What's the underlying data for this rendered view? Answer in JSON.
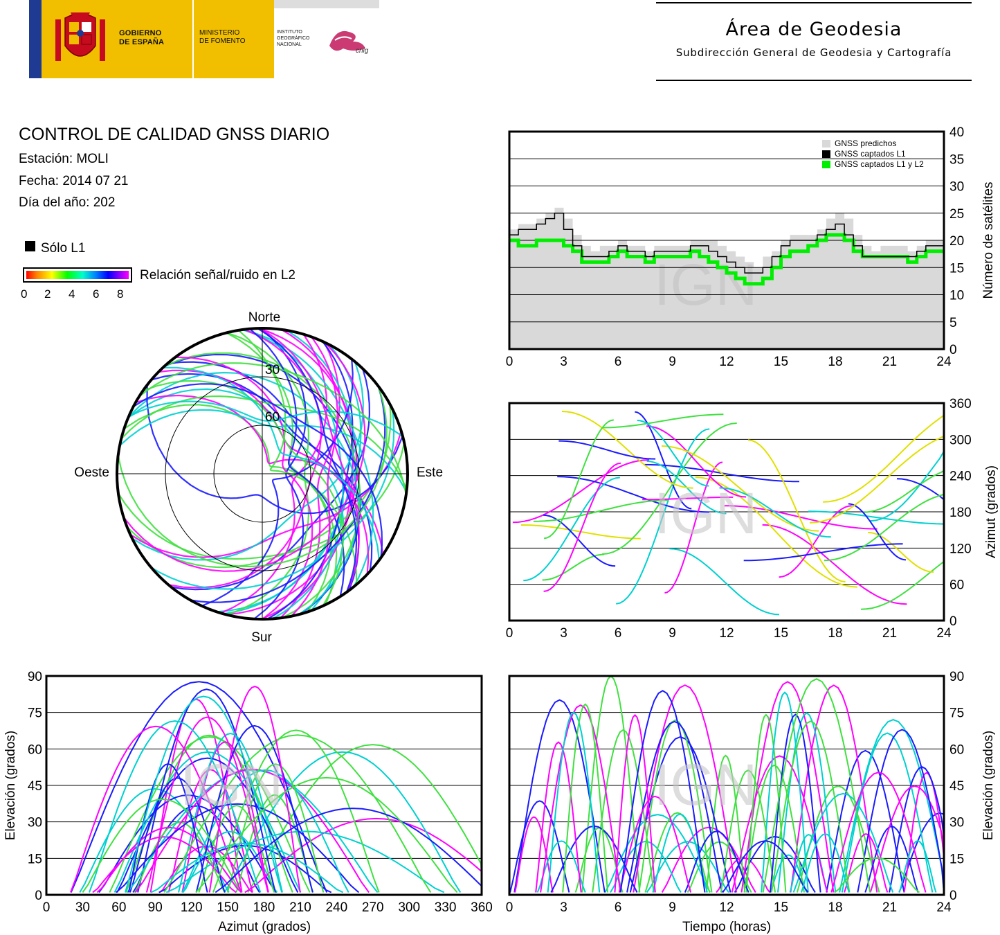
{
  "header": {
    "gov_text": [
      "GOBIERNO",
      "DE ESPAÑA"
    ],
    "ministry_text": [
      "MINISTERIO",
      "DE FOMENTO"
    ],
    "institute_text": [
      "INSTITUTO",
      "GEOGRÁFICO",
      "NACIONAL"
    ],
    "cnig_text": "cnig",
    "area_title": "Área de Geodesia",
    "area_subtitle": "Subdirección General de Geodesia y Cartografía"
  },
  "info": {
    "title": "CONTROL DE CALIDAD GNSS DIARIO",
    "station": "Estación: MOLI",
    "date": "Fecha: 2014 07 21",
    "doy": "Día del año: 202",
    "legend_l1": "Sólo L1",
    "colorbar_label": "Relación señal/ruido en L2",
    "colorbar_ticks": [
      "0",
      "2",
      "4",
      "6",
      "8"
    ],
    "watermark": "IGN"
  },
  "colors": {
    "predicted": "#d9d9d9",
    "l1": "#000000",
    "l1l2": "#00ee00",
    "magenta": "#ff00ff",
    "blue": "#1a1aff",
    "cyan": "#00d0d0",
    "green": "#40e040",
    "yellow": "#e0e000",
    "red": "#ff2000"
  },
  "chart_data": [
    {
      "type": "line",
      "id": "satellite-count",
      "ylabel": "Número de satélites",
      "x_ticks": [
        "0",
        "3",
        "6",
        "9",
        "12",
        "15",
        "18",
        "21",
        "24"
      ],
      "y_ticks": [
        "0",
        "5",
        "10",
        "15",
        "20",
        "25",
        "30",
        "35",
        "40"
      ],
      "xlim": [
        0,
        24
      ],
      "ylim": [
        0,
        40
      ],
      "grid": true,
      "legend_position": "top-right",
      "x": [
        0,
        0.5,
        1,
        1.5,
        2,
        2.5,
        3,
        3.5,
        4,
        4.5,
        5,
        5.5,
        6,
        6.5,
        7,
        7.5,
        8,
        8.5,
        9,
        9.5,
        10,
        10.5,
        11,
        11.5,
        12,
        12.5,
        13,
        13.5,
        14,
        14.5,
        15,
        15.5,
        16,
        16.5,
        17,
        17.5,
        18,
        18.5,
        19,
        19.5,
        20,
        20.5,
        21,
        21.5,
        22,
        22.5,
        23,
        23.5,
        24
      ],
      "series": [
        {
          "name": "GNSS predichos",
          "values": [
            22,
            23,
            23,
            24,
            25,
            26,
            24,
            21,
            19,
            18,
            19,
            19,
            20,
            19,
            19,
            18,
            19,
            19,
            19,
            19,
            20,
            20,
            20,
            19,
            18,
            17,
            16,
            15,
            17,
            18,
            20,
            21,
            21,
            21,
            22,
            24,
            25,
            24,
            21,
            19,
            18,
            19,
            19,
            19,
            18,
            19,
            20,
            20,
            20
          ]
        },
        {
          "name": "GNSS captados L1",
          "values": [
            21,
            22,
            22,
            23,
            24,
            25,
            22,
            19,
            17,
            17,
            17,
            18,
            19,
            18,
            18,
            17,
            18,
            18,
            18,
            18,
            19,
            19,
            18,
            17,
            16,
            15,
            14,
            14,
            15,
            17,
            19,
            20,
            20,
            20,
            21,
            22,
            23,
            21,
            19,
            17,
            17,
            17,
            17,
            17,
            17,
            18,
            19,
            19,
            19
          ]
        },
        {
          "name": "GNSS captados L1 y L2",
          "values": [
            20,
            19,
            19,
            20,
            20,
            20,
            19,
            18,
            16,
            16,
            16,
            17,
            18,
            17,
            17,
            16,
            17,
            17,
            17,
            17,
            18,
            17,
            16,
            15,
            14,
            13,
            12,
            12,
            13,
            15,
            17,
            18,
            18,
            19,
            20,
            21,
            21,
            20,
            18,
            17,
            17,
            17,
            17,
            17,
            16,
            17,
            18,
            18,
            18
          ]
        }
      ]
    },
    {
      "type": "scatter",
      "id": "sky-plot",
      "labels": {
        "north": "Norte",
        "south": "Sur",
        "west": "Oeste",
        "east": "Este"
      },
      "ring_labels": [
        "30",
        "60"
      ]
    },
    {
      "type": "scatter",
      "id": "azimuth-vs-time",
      "ylabel": "Azimut (grados)",
      "x_ticks": [
        "0",
        "3",
        "6",
        "9",
        "12",
        "15",
        "18",
        "21",
        "24"
      ],
      "y_ticks": [
        "0",
        "60",
        "120",
        "180",
        "240",
        "300",
        "360"
      ],
      "xlim": [
        0,
        24
      ],
      "ylim": [
        0,
        360
      ],
      "grid": true
    },
    {
      "type": "scatter",
      "id": "elevation-vs-azimuth",
      "xlabel": "Azimut (grados)",
      "ylabel": "Elevación (grados)",
      "x_ticks": [
        "0",
        "30",
        "60",
        "90",
        "120",
        "150",
        "180",
        "210",
        "240",
        "270",
        "300",
        "330",
        "360"
      ],
      "y_ticks": [
        "0",
        "15",
        "30",
        "45",
        "60",
        "75",
        "90"
      ],
      "xlim": [
        0,
        360
      ],
      "ylim": [
        0,
        90
      ],
      "grid": true
    },
    {
      "type": "scatter",
      "id": "elevation-vs-time",
      "xlabel": "Tiempo (horas)",
      "ylabel": "Elevación (grados)",
      "x_ticks": [
        "0",
        "3",
        "6",
        "9",
        "12",
        "15",
        "18",
        "21",
        "24"
      ],
      "y_ticks": [
        "0",
        "15",
        "30",
        "45",
        "60",
        "75",
        "90"
      ],
      "xlim": [
        0,
        24
      ],
      "ylim": [
        0,
        90
      ],
      "grid": true
    }
  ]
}
